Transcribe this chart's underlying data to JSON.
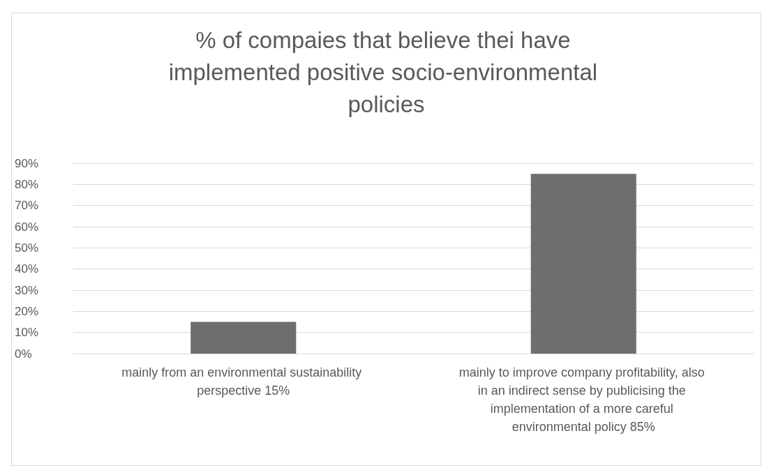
{
  "chart_data": {
    "type": "bar",
    "title": "% of compaies that believe thei have implemented positive socio-environmental policies",
    "categories": [
      "mainly from an environmental sustainability perspective 15%",
      "mainly to improve company profitability, also in an indirect sense by publicising the implementation of a more careful environmental policy 85%"
    ],
    "values": [
      15,
      85
    ],
    "color": "#6e6e6e",
    "ylim": [
      0,
      90
    ],
    "yticks": [
      {
        "value": 0,
        "label": "0%"
      },
      {
        "value": 10,
        "label": "10%"
      },
      {
        "value": 20,
        "label": "20%"
      },
      {
        "value": 30,
        "label": "30%"
      },
      {
        "value": 40,
        "label": "40%"
      },
      {
        "value": 50,
        "label": "50%"
      },
      {
        "value": 60,
        "label": "60%"
      },
      {
        "value": 70,
        "label": "70%"
      },
      {
        "value": 80,
        "label": "80%"
      },
      {
        "value": 90,
        "label": "90%"
      }
    ],
    "grid": "y"
  }
}
